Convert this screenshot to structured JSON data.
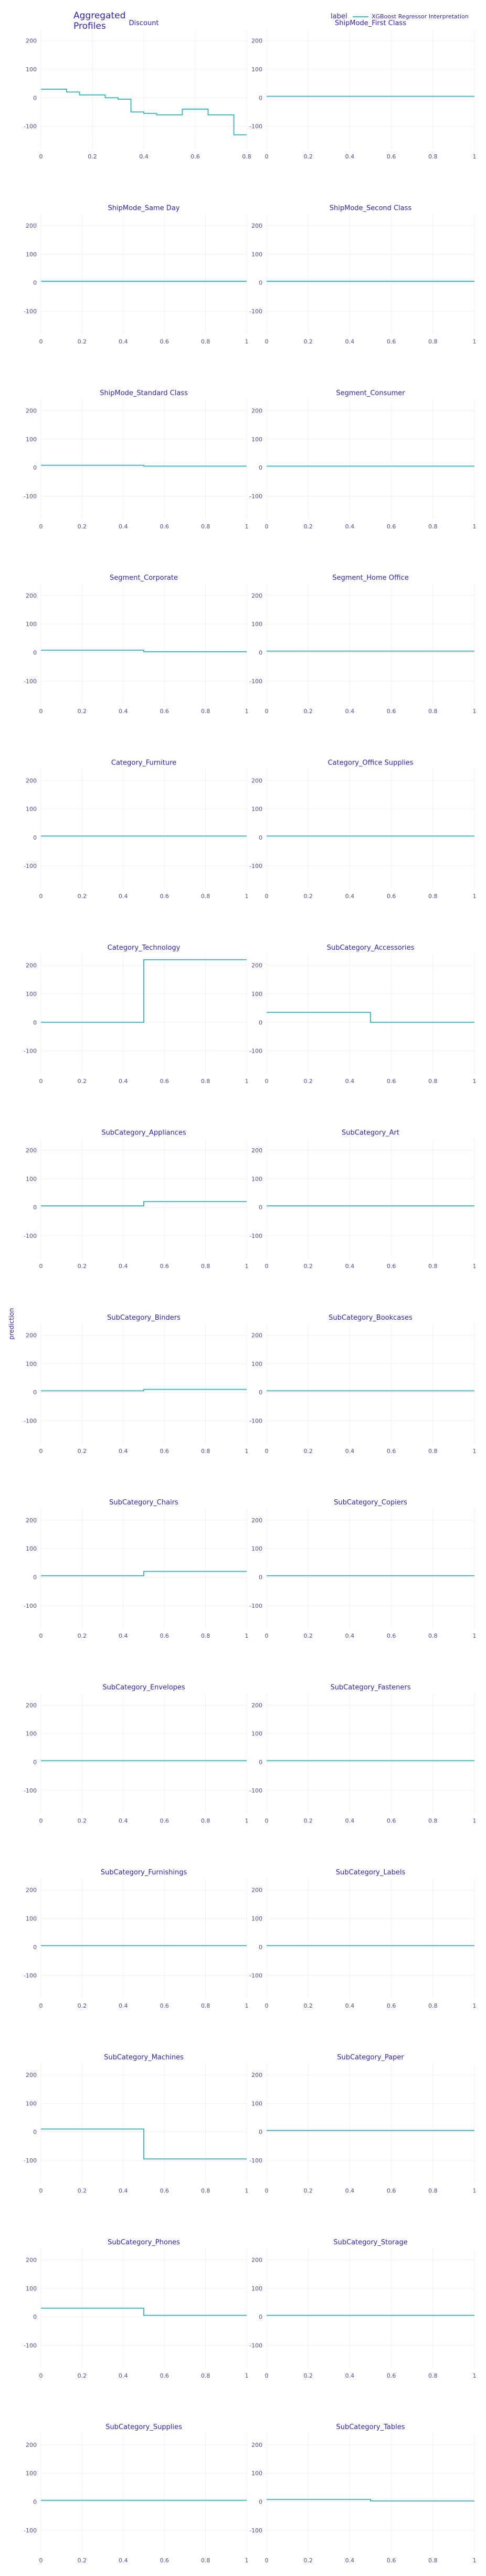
{
  "chart_data": {
    "type": "line",
    "title": "Aggregated Profiles",
    "ylabel": "prediction",
    "legend": {
      "title": "label",
      "entries": [
        "XGBoost Regressor Interpretation"
      ],
      "placement": "top-right",
      "color": "#46bac2"
    },
    "colors": {
      "line": "#46bac2",
      "text": "#371ea3",
      "grid": "#f0f0f4",
      "tick": "#4e4e8c"
    },
    "grid": true,
    "ylim": [
      -180,
      240
    ],
    "yticks": [
      -100,
      0,
      100,
      200
    ],
    "xticks": [
      0,
      0.2,
      0.4,
      0.6,
      0.8,
      1
    ],
    "panels": [
      {
        "name": "Discount",
        "xlim": [
          0,
          0.8
        ],
        "xticks": [
          0,
          0.2,
          0.4,
          0.6,
          0.8
        ],
        "x": [
          0,
          0.1,
          0.1,
          0.15,
          0.15,
          0.2,
          0.2,
          0.25,
          0.25,
          0.3,
          0.3,
          0.35,
          0.35,
          0.4,
          0.4,
          0.45,
          0.45,
          0.5,
          0.5,
          0.55,
          0.55,
          0.6,
          0.6,
          0.65,
          0.65,
          0.7,
          0.7,
          0.75,
          0.75,
          0.8
        ],
        "y": [
          30,
          30,
          20,
          20,
          10,
          10,
          10,
          10,
          0,
          0,
          -5,
          -5,
          -50,
          -50,
          -55,
          -55,
          -60,
          -60,
          -60,
          -60,
          -40,
          -40,
          -40,
          -40,
          -60,
          -60,
          -60,
          -60,
          -130,
          -130
        ]
      },
      {
        "name": "ShipMode_First Class",
        "x": [
          0,
          1
        ],
        "y": [
          5,
          5
        ]
      },
      {
        "name": "ShipMode_Same Day",
        "x": [
          0,
          1
        ],
        "y": [
          5,
          5
        ]
      },
      {
        "name": "ShipMode_Second Class",
        "x": [
          0,
          1
        ],
        "y": [
          5,
          5
        ]
      },
      {
        "name": "ShipMode_Standard Class",
        "x": [
          0,
          0.5,
          0.5,
          1
        ],
        "y": [
          8,
          8,
          5,
          5
        ]
      },
      {
        "name": "Segment_Consumer",
        "x": [
          0,
          1
        ],
        "y": [
          5,
          5
        ]
      },
      {
        "name": "Segment_Corporate",
        "x": [
          0,
          0.5,
          0.5,
          1
        ],
        "y": [
          8,
          8,
          3,
          3
        ]
      },
      {
        "name": "Segment_Home Office",
        "x": [
          0,
          1
        ],
        "y": [
          5,
          5
        ]
      },
      {
        "name": "Category_Furniture",
        "x": [
          0,
          1
        ],
        "y": [
          5,
          5
        ]
      },
      {
        "name": "Category_Office Supplies",
        "x": [
          0,
          1
        ],
        "y": [
          5,
          5
        ]
      },
      {
        "name": "Category_Technology",
        "x": [
          0,
          0.5,
          0.5,
          1
        ],
        "y": [
          0,
          0,
          220,
          220
        ]
      },
      {
        "name": "SubCategory_Accessories",
        "x": [
          0,
          0.5,
          0.5,
          1
        ],
        "y": [
          35,
          35,
          0,
          0
        ]
      },
      {
        "name": "SubCategory_Appliances",
        "x": [
          0,
          0.5,
          0.5,
          1
        ],
        "y": [
          5,
          5,
          20,
          20
        ]
      },
      {
        "name": "SubCategory_Art",
        "x": [
          0,
          1
        ],
        "y": [
          5,
          5
        ]
      },
      {
        "name": "SubCategory_Binders",
        "x": [
          0,
          0.5,
          0.5,
          1
        ],
        "y": [
          5,
          5,
          10,
          10
        ]
      },
      {
        "name": "SubCategory_Bookcases",
        "x": [
          0,
          1
        ],
        "y": [
          5,
          5
        ]
      },
      {
        "name": "SubCategory_Chairs",
        "x": [
          0,
          0.5,
          0.5,
          1
        ],
        "y": [
          5,
          5,
          20,
          20
        ]
      },
      {
        "name": "SubCategory_Copiers",
        "x": [
          0,
          1
        ],
        "y": [
          5,
          5
        ]
      },
      {
        "name": "SubCategory_Envelopes",
        "x": [
          0,
          1
        ],
        "y": [
          5,
          5
        ]
      },
      {
        "name": "SubCategory_Fasteners",
        "x": [
          0,
          1
        ],
        "y": [
          5,
          5
        ]
      },
      {
        "name": "SubCategory_Furnishings",
        "x": [
          0,
          1
        ],
        "y": [
          5,
          5
        ]
      },
      {
        "name": "SubCategory_Labels",
        "x": [
          0,
          1
        ],
        "y": [
          5,
          5
        ]
      },
      {
        "name": "SubCategory_Machines",
        "x": [
          0,
          0.5,
          0.5,
          1
        ],
        "y": [
          10,
          10,
          -95,
          -95
        ]
      },
      {
        "name": "SubCategory_Paper",
        "x": [
          0,
          1
        ],
        "y": [
          5,
          5
        ]
      },
      {
        "name": "SubCategory_Phones",
        "x": [
          0,
          0.5,
          0.5,
          1
        ],
        "y": [
          30,
          30,
          5,
          5
        ]
      },
      {
        "name": "SubCategory_Storage",
        "x": [
          0,
          1
        ],
        "y": [
          5,
          5
        ]
      },
      {
        "name": "SubCategory_Supplies",
        "x": [
          0,
          1
        ],
        "y": [
          5,
          5
        ]
      },
      {
        "name": "SubCategory_Tables",
        "x": [
          0,
          0.5,
          0.5,
          1
        ],
        "y": [
          8,
          8,
          3,
          3
        ]
      }
    ]
  }
}
